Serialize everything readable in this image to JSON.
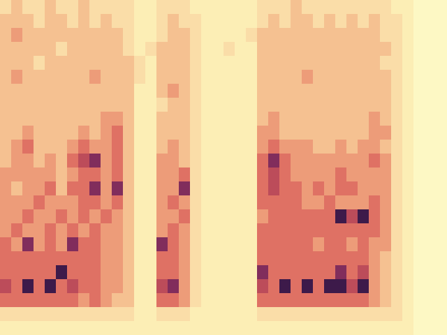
{
  "chart_data": {
    "type": "heatmap",
    "tick_labels": false,
    "grid": false,
    "cells": [
      [
        2,
        3,
        2,
        2,
        3,
        2,
        2,
        3,
        2,
        2,
        2,
        2,
        1,
        1,
        2,
        2,
        2,
        1,
        1,
        1,
        1,
        1,
        1,
        2,
        2,
        2,
        3,
        2,
        2,
        2,
        2,
        2,
        2,
        2,
        2,
        1,
        1,
        0,
        0,
        0
      ],
      [
        3,
        3,
        3,
        2,
        3,
        3,
        2,
        3,
        2,
        3,
        2,
        2,
        1,
        1,
        2,
        3,
        2,
        2,
        1,
        1,
        1,
        1,
        1,
        2,
        3,
        2,
        3,
        3,
        2,
        3,
        2,
        3,
        2,
        3,
        2,
        2,
        1,
        0,
        0,
        0
      ],
      [
        3,
        4,
        3,
        3,
        3,
        3,
        3,
        3,
        3,
        3,
        3,
        2,
        1,
        1,
        2,
        3,
        3,
        2,
        1,
        1,
        1,
        1,
        2,
        3,
        3,
        3,
        3,
        3,
        3,
        3,
        3,
        3,
        3,
        3,
        2,
        2,
        1,
        0,
        0,
        0
      ],
      [
        3,
        3,
        3,
        3,
        3,
        2,
        3,
        3,
        3,
        3,
        3,
        2,
        1,
        2,
        3,
        3,
        3,
        2,
        1,
        1,
        2,
        1,
        1,
        3,
        3,
        3,
        3,
        3,
        3,
        3,
        3,
        3,
        3,
        3,
        3,
        2,
        1,
        0,
        0,
        0
      ],
      [
        3,
        3,
        3,
        2,
        3,
        3,
        3,
        3,
        3,
        3,
        3,
        3,
        2,
        1,
        3,
        3,
        3,
        2,
        1,
        1,
        1,
        1,
        1,
        3,
        3,
        3,
        3,
        3,
        3,
        3,
        3,
        3,
        3,
        3,
        2,
        2,
        1,
        0,
        0,
        0
      ],
      [
        3,
        4,
        3,
        3,
        3,
        3,
        3,
        3,
        4,
        3,
        3,
        3,
        2,
        1,
        3,
        3,
        3,
        2,
        1,
        1,
        1,
        1,
        1,
        3,
        3,
        3,
        3,
        4,
        3,
        3,
        3,
        3,
        3,
        3,
        3,
        2,
        1,
        0,
        0,
        0
      ],
      [
        3,
        3,
        3,
        3,
        3,
        3,
        3,
        3,
        3,
        3,
        3,
        3,
        1,
        1,
        3,
        4,
        3,
        2,
        1,
        1,
        1,
        1,
        1,
        3,
        3,
        3,
        3,
        3,
        3,
        3,
        3,
        3,
        3,
        3,
        3,
        2,
        1,
        0,
        0,
        0
      ],
      [
        3,
        3,
        3,
        3,
        3,
        3,
        3,
        3,
        3,
        3,
        3,
        3,
        1,
        1,
        2,
        3,
        3,
        2,
        1,
        1,
        1,
        1,
        1,
        3,
        3,
        3,
        3,
        3,
        3,
        3,
        3,
        3,
        3,
        3,
        3,
        2,
        1,
        0,
        0,
        0
      ],
      [
        3,
        3,
        3,
        3,
        3,
        3,
        3,
        3,
        3,
        4,
        4,
        3,
        1,
        1,
        3,
        3,
        3,
        2,
        1,
        1,
        1,
        1,
        1,
        3,
        4,
        3,
        3,
        3,
        3,
        3,
        3,
        3,
        3,
        4,
        3,
        2,
        1,
        0,
        0,
        0
      ],
      [
        3,
        3,
        4,
        3,
        3,
        3,
        3,
        4,
        3,
        4,
        5,
        3,
        1,
        1,
        3,
        3,
        3,
        2,
        1,
        1,
        1,
        1,
        1,
        4,
        4,
        3,
        3,
        3,
        3,
        3,
        3,
        3,
        3,
        4,
        4,
        2,
        1,
        0,
        0,
        0
      ],
      [
        3,
        4,
        5,
        3,
        3,
        3,
        4,
        5,
        4,
        4,
        5,
        3,
        1,
        1,
        3,
        4,
        3,
        2,
        1,
        1,
        1,
        1,
        1,
        4,
        5,
        4,
        4,
        4,
        3,
        3,
        4,
        3,
        4,
        4,
        3,
        2,
        1,
        0,
        0,
        0
      ],
      [
        3,
        4,
        4,
        3,
        4,
        3,
        5,
        6,
        7,
        4,
        5,
        3,
        1,
        1,
        4,
        4,
        3,
        2,
        1,
        1,
        1,
        1,
        1,
        5,
        7,
        5,
        4,
        4,
        4,
        4,
        4,
        4,
        4,
        5,
        4,
        2,
        1,
        0,
        0,
        0
      ],
      [
        4,
        4,
        4,
        4,
        4,
        3,
        4,
        5,
        5,
        4,
        5,
        3,
        1,
        1,
        4,
        4,
        5,
        2,
        1,
        1,
        1,
        1,
        1,
        5,
        6,
        5,
        4,
        4,
        4,
        4,
        5,
        4,
        4,
        4,
        4,
        2,
        1,
        0,
        0,
        0
      ],
      [
        4,
        3,
        4,
        4,
        5,
        3,
        5,
        5,
        7,
        4,
        7,
        3,
        1,
        1,
        4,
        4,
        7,
        2,
        1,
        1,
        1,
        1,
        1,
        5,
        6,
        5,
        5,
        4,
        5,
        4,
        5,
        5,
        4,
        4,
        4,
        2,
        1,
        0,
        0,
        0
      ],
      [
        4,
        4,
        4,
        5,
        4,
        4,
        4,
        5,
        5,
        4,
        5,
        3,
        1,
        1,
        4,
        5,
        4,
        2,
        1,
        1,
        1,
        1,
        1,
        5,
        5,
        5,
        5,
        4,
        4,
        5,
        4,
        4,
        4,
        5,
        4,
        2,
        1,
        0,
        0,
        0
      ],
      [
        4,
        4,
        5,
        4,
        4,
        5,
        4,
        5,
        4,
        5,
        4,
        3,
        1,
        1,
        4,
        4,
        5,
        2,
        1,
        1,
        1,
        1,
        1,
        4,
        5,
        5,
        5,
        5,
        5,
        5,
        8,
        6,
        8,
        5,
        4,
        2,
        1,
        0,
        0,
        0
      ],
      [
        4,
        5,
        4,
        4,
        5,
        4,
        5,
        4,
        5,
        4,
        4,
        3,
        1,
        1,
        4,
        5,
        4,
        2,
        1,
        1,
        1,
        1,
        1,
        5,
        5,
        5,
        5,
        5,
        5,
        5,
        5,
        5,
        5,
        5,
        4,
        2,
        1,
        0,
        0,
        0
      ],
      [
        5,
        4,
        7,
        4,
        5,
        4,
        7,
        5,
        5,
        4,
        4,
        3,
        1,
        1,
        7,
        5,
        4,
        2,
        1,
        1,
        1,
        1,
        1,
        5,
        5,
        5,
        5,
        5,
        4,
        5,
        5,
        4,
        5,
        4,
        4,
        2,
        1,
        0,
        0,
        0
      ],
      [
        5,
        5,
        5,
        5,
        5,
        5,
        5,
        5,
        5,
        4,
        4,
        3,
        1,
        1,
        5,
        5,
        4,
        2,
        1,
        1,
        1,
        1,
        1,
        5,
        5,
        5,
        5,
        5,
        5,
        5,
        5,
        5,
        5,
        4,
        3,
        2,
        1,
        0,
        0,
        0
      ],
      [
        5,
        5,
        5,
        5,
        5,
        8,
        5,
        5,
        5,
        4,
        4,
        3,
        1,
        1,
        5,
        5,
        4,
        2,
        1,
        1,
        1,
        1,
        1,
        7,
        5,
        5,
        5,
        5,
        5,
        5,
        7,
        5,
        6,
        4,
        3,
        2,
        1,
        0,
        0,
        0
      ],
      [
        6,
        5,
        8,
        5,
        8,
        5,
        6,
        5,
        5,
        4,
        4,
        3,
        1,
        1,
        6,
        7,
        4,
        2,
        1,
        1,
        1,
        1,
        1,
        6,
        5,
        8,
        5,
        8,
        5,
        8,
        8,
        6,
        8,
        4,
        3,
        2,
        1,
        0,
        0,
        0
      ],
      [
        5,
        5,
        5,
        5,
        5,
        5,
        5,
        4,
        5,
        4,
        3,
        3,
        1,
        1,
        5,
        5,
        4,
        2,
        1,
        1,
        1,
        1,
        1,
        5,
        5,
        5,
        5,
        5,
        5,
        5,
        5,
        5,
        5,
        4,
        3,
        2,
        1,
        0,
        0,
        0
      ],
      [
        2,
        2,
        2,
        2,
        2,
        2,
        2,
        2,
        2,
        2,
        2,
        2,
        1,
        1,
        2,
        2,
        2,
        1,
        1,
        1,
        1,
        1,
        1,
        2,
        2,
        2,
        2,
        2,
        2,
        2,
        2,
        2,
        2,
        2,
        2,
        2,
        1,
        0,
        0,
        0
      ],
      [
        1,
        1,
        1,
        1,
        1,
        1,
        1,
        1,
        1,
        1,
        1,
        1,
        1,
        1,
        1,
        1,
        1,
        1,
        1,
        1,
        1,
        1,
        1,
        1,
        1,
        1,
        1,
        1,
        1,
        1,
        1,
        1,
        1,
        1,
        1,
        1,
        1,
        0,
        0,
        0
      ]
    ]
  }
}
